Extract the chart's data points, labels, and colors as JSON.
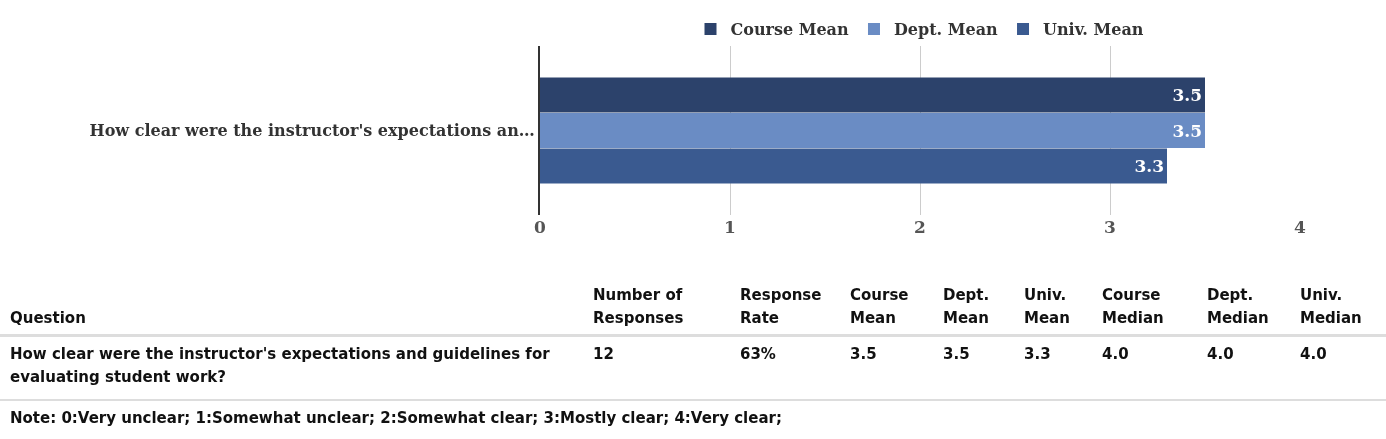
{
  "chart_data": [
    {
      "type": "bar",
      "orientation": "horizontal",
      "categories": [
        "How clear were the instructor's expectations an…"
      ],
      "series": [
        {
          "name": "Course Mean",
          "color": "#2c426b",
          "values": [
            3.5
          ]
        },
        {
          "name": "Dept. Mean",
          "color": "#6a8cc4",
          "values": [
            3.5
          ]
        },
        {
          "name": "Univ. Mean",
          "color": "#3a5a90",
          "values": [
            3.3
          ]
        }
      ],
      "xlim": [
        0,
        4
      ],
      "xticks": [
        0,
        1,
        2,
        3,
        4
      ],
      "grid": "x",
      "legend": "top",
      "data_labels": true
    },
    {
      "type": "other",
      "categories": [
        "Question",
        "Number of Responses",
        "Response Rate",
        "Course Mean",
        "Dept. Mean",
        "Univ. Mean",
        "Course Median",
        "Dept. Median",
        "Univ. Median"
      ],
      "annotations": [
        "How clear were the instructor's expectations and guidelines for evaluating student work?",
        "12",
        "63%",
        "3.5",
        "3.5",
        "3.3",
        "4.0",
        "4.0",
        "4.0",
        "Note: 0:Very unclear; 1:Somewhat unclear; 2:Somewhat clear; 3:Mostly clear; 4:Very clear;"
      ]
    }
  ]
}
